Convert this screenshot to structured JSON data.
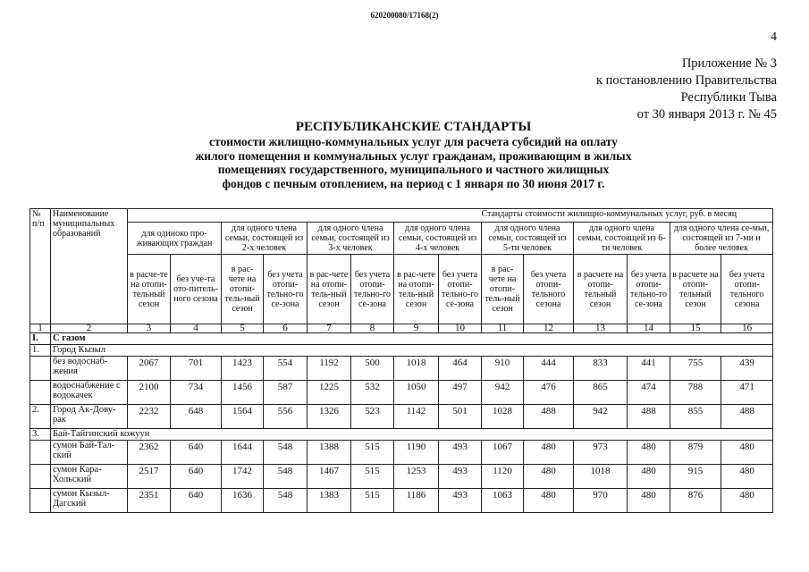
{
  "document_id": "620200080/17168(2)",
  "page_number": "4",
  "annex": {
    "lines": [
      "Приложение № 3",
      "к постановлению Правительства",
      "Республики Тыва",
      "от 30 января 2013 г. № 45"
    ]
  },
  "title": "РЕСПУБЛИКАНСКИЕ СТАНДАРТЫ",
  "subtitle_lines": [
    "стоимости жилищно-коммунальных услуг для расчета субсидий на оплату",
    "жилого помещения и коммунальных услуг гражданам, проживающим в жилых",
    "помещениях государственного, муниципального и частного жилищных",
    "фондов с печным отоплением, на период с 1 января по 30 июня 2017 г."
  ],
  "table": {
    "col_no": "№ п/п",
    "col_name": "Наименование муниципальных образований",
    "col_standards": "Стандарты стоимости жилищно-коммунальных услуг, руб. в месяц",
    "groups": [
      "для одиноко про-живающих граждан",
      "для одного члена семьи, состоящей из 2-х человек",
      "для одного члена семьи, состоящей из 3-х человек",
      "для одного члена семьи, состоящей из 4-х человек",
      "для одного члена семьи, состоящей из 5-ти человек",
      "для одного члена семьи, состоящей из 6-ти человек",
      "для одного члена се-мьи, состоящей из 7-ми и более человек"
    ],
    "subheaders": [
      "в расче-те на отопи-тельный сезон",
      "без уче-та ото-питель-ного сезона",
      "в рас-чете на отопи-тель-ный сезон",
      "без учета отопи-тельно-го се-зона",
      "в рас-чете на отопи-тель-ный сезон",
      "без учета отопи-тельно-го се-зона",
      "в рас-чете на отопи-тель-ный сезон",
      "без учета отопи-тельно-го се-зона",
      "в рас-чете на отопи-тель-ный сезон",
      "без учета отопи-тельного сезона",
      "в расчете на отопи-тельный сезон",
      "без учета отопи-тельно-го се-зона",
      "в расчете на отопи-тельный сезон",
      "без учета отопи-тельного сезона"
    ],
    "column_numbers": [
      "1",
      "2",
      "3",
      "4",
      "5",
      "6",
      "7",
      "8",
      "9",
      "10",
      "11",
      "12",
      "13",
      "14",
      "15",
      "16"
    ],
    "rows": [
      {
        "type": "section",
        "no": "I.",
        "name": "С газом"
      },
      {
        "type": "group",
        "no": "1.",
        "name": "Город Кызыл"
      },
      {
        "type": "data",
        "no": "",
        "name": "без водоснаб-жения",
        "values": [
          "2067",
          "701",
          "1423",
          "554",
          "1192",
          "500",
          "1018",
          "464",
          "910",
          "444",
          "833",
          "441",
          "755",
          "439"
        ]
      },
      {
        "type": "data",
        "no": "",
        "name": "водоснабжение с водокачек",
        "values": [
          "2100",
          "734",
          "1456",
          "587",
          "1225",
          "532",
          "1050",
          "497",
          "942",
          "476",
          "865",
          "474",
          "788",
          "471"
        ]
      },
      {
        "type": "data",
        "no": "2.",
        "name": "Город Ак-Дову-рак",
        "values": [
          "2232",
          "648",
          "1564",
          "556",
          "1326",
          "523",
          "1142",
          "501",
          "1028",
          "488",
          "942",
          "488",
          "855",
          "488"
        ]
      },
      {
        "type": "group",
        "no": "3.",
        "name": "Бай-Тайгинский кожуун"
      },
      {
        "type": "data",
        "no": "",
        "name": "сумон Бай-Тал-ский",
        "values": [
          "2362",
          "640",
          "1644",
          "548",
          "1388",
          "515",
          "1190",
          "493",
          "1067",
          "480",
          "973",
          "480",
          "879",
          "480"
        ]
      },
      {
        "type": "data",
        "no": "",
        "name": "сумон Кара-Хольский",
        "values": [
          "2517",
          "640",
          "1742",
          "548",
          "1467",
          "515",
          "1253",
          "493",
          "1120",
          "480",
          "1018",
          "480",
          "915",
          "480"
        ]
      },
      {
        "type": "data",
        "no": "",
        "name": "сумон Кызыл-Дагский",
        "values": [
          "2351",
          "640",
          "1636",
          "548",
          "1383",
          "515",
          "1186",
          "493",
          "1063",
          "480",
          "970",
          "480",
          "876",
          "480"
        ]
      }
    ]
  }
}
